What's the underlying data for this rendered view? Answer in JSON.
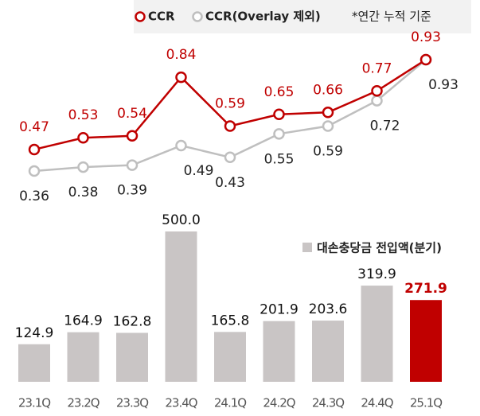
{
  "chart_data": [
    {
      "type": "line",
      "series": [
        {
          "name": "CCR",
          "color": "#c00000",
          "values": [
            0.47,
            0.53,
            0.54,
            0.84,
            0.59,
            0.65,
            0.66,
            0.77,
            0.93
          ]
        },
        {
          "name": "CCR(Overlay 제외)",
          "color": "#bfbfbf",
          "values": [
            0.36,
            0.38,
            0.39,
            0.49,
            0.43,
            0.55,
            0.59,
            0.72,
            0.93
          ]
        }
      ],
      "annotation": "*연간 누적 기준"
    },
    {
      "type": "bar",
      "legend": "대손충당금 전입액(분기)",
      "categories": [
        "23.1Q",
        "23.2Q",
        "23.3Q",
        "23.4Q",
        "24.1Q",
        "24.2Q",
        "24.3Q",
        "24.4Q",
        "25.1Q"
      ],
      "values": [
        124.9,
        164.9,
        162.8,
        500,
        165.8,
        201.9,
        203.6,
        319.9,
        271.9
      ],
      "value_labels": [
        "124.9",
        "164.9",
        "162.8",
        "500.0",
        "165.8",
        "201.9",
        "203.6",
        "319.9",
        "271.9"
      ],
      "colors": [
        "#c9c5c5",
        "#c9c5c5",
        "#c9c5c5",
        "#c9c5c5",
        "#c9c5c5",
        "#c9c5c5",
        "#c9c5c5",
        "#c9c5c5",
        "#c00000"
      ]
    }
  ]
}
